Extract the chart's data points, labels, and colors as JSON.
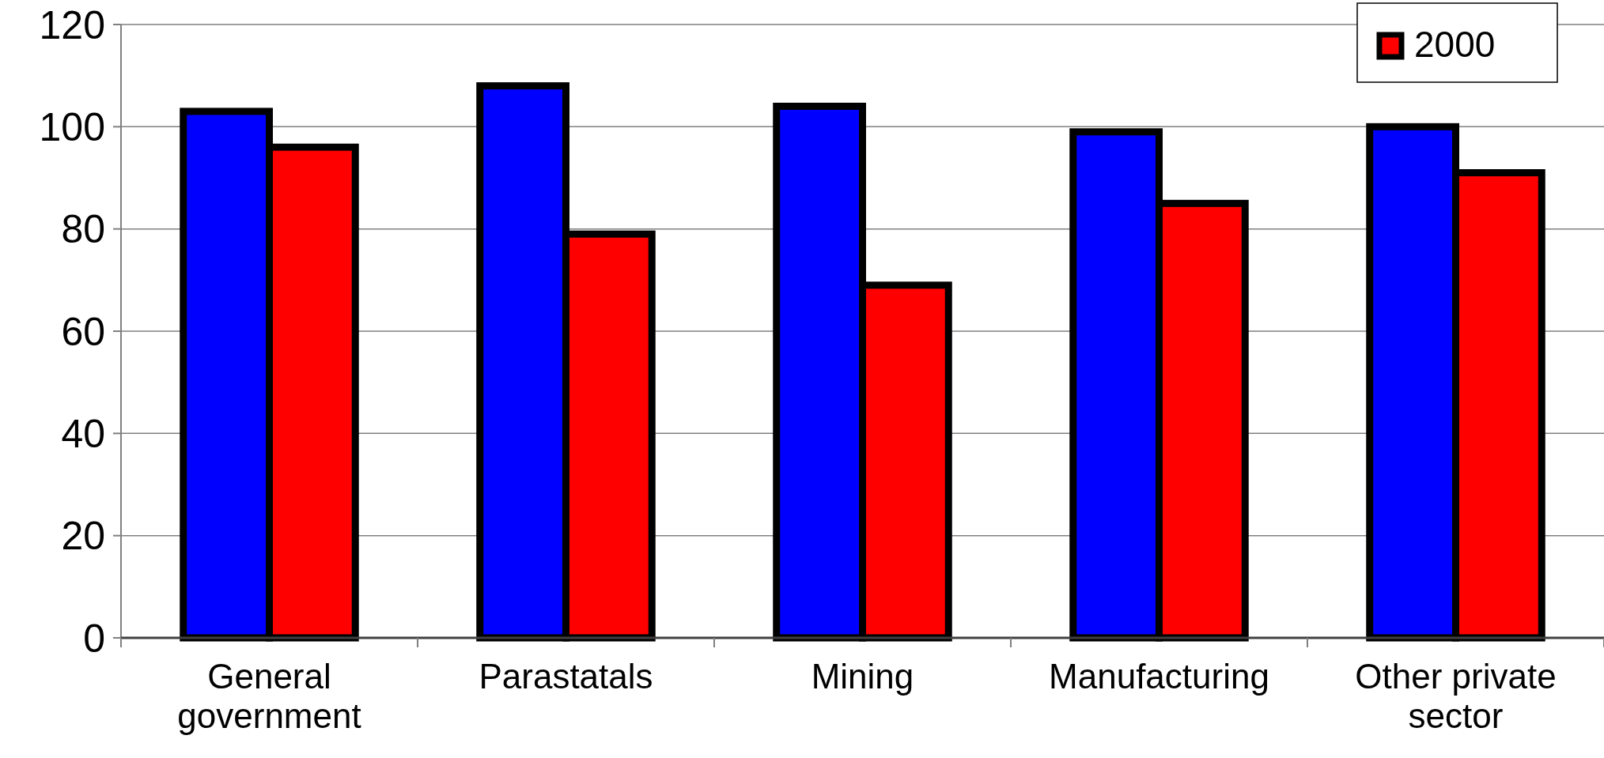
{
  "chart_data": {
    "type": "bar",
    "categories": [
      "General government",
      "Parastatals",
      "Mining",
      "Manufacturing",
      "Other private sector"
    ],
    "series": [
      {
        "color": "#0000ff",
        "values": [
          103,
          108,
          104,
          99,
          100
        ]
      },
      {
        "name": "2000",
        "color": "#ff0000",
        "values": [
          96,
          79,
          69,
          85,
          91
        ]
      }
    ],
    "ylim": [
      0,
      120
    ],
    "yticks": [
      0,
      20,
      40,
      60,
      80,
      100,
      120
    ],
    "grid": "y",
    "legend": "top right"
  }
}
